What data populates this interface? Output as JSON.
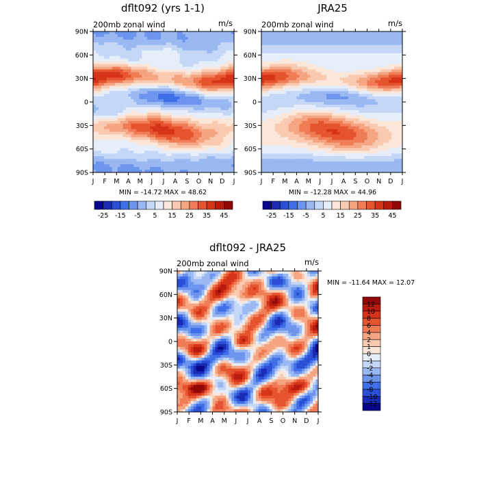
{
  "figure": {
    "panels": [
      {
        "title": "dflt092 (yrs 1-1)",
        "field": "200mb zonal wind",
        "unit": "m/s",
        "min_label": "MIN",
        "min_value": "-14.72",
        "max_label": "MAX",
        "max_value": "48.62"
      },
      {
        "title": "JRA25",
        "field": "200mb zonal wind",
        "unit": "m/s",
        "min_label": "MIN",
        "min_value": "-12.28",
        "max_label": "MAX",
        "max_value": "44.96"
      },
      {
        "title": "dflt092 - JRA25",
        "field": "200mb zonal wind",
        "unit": "m/s",
        "min_label": "MIN",
        "min_value": "-11.64",
        "max_label": "MAX",
        "max_value": "12.07"
      }
    ]
  },
  "chart_data": [
    {
      "type": "heatmap",
      "title": "dflt092 (yrs 1-1)",
      "subtitle": "200mb zonal wind",
      "unit": "m/s",
      "x": [
        "J",
        "F",
        "M",
        "A",
        "M",
        "J",
        "J",
        "A",
        "S",
        "O",
        "N",
        "D",
        "J"
      ],
      "y": [
        "90N",
        "60N",
        "30N",
        "0",
        "30S",
        "60S",
        "90S"
      ],
      "value_min": -14.72,
      "value_max": 48.62,
      "colorbar": {
        "orientation": "horizontal",
        "labels": [
          "-25",
          "-15",
          "-5",
          "5",
          "15",
          "25",
          "35",
          "45"
        ],
        "levels": [
          -30,
          -25,
          -20,
          -15,
          -10,
          -5,
          0,
          5,
          10,
          15,
          20,
          25,
          30,
          35,
          40,
          45,
          50
        ],
        "colors": [
          "#08088c",
          "#1a2ab4",
          "#2a4fd6",
          "#3f6fe6",
          "#6d95ee",
          "#9ab8f2",
          "#c5d7f6",
          "#e6eefb",
          "#fbe6da",
          "#f9c9b0",
          "#f5a582",
          "#f07c56",
          "#e6532f",
          "#d63418",
          "#b81c0f",
          "#900808"
        ]
      }
    },
    {
      "type": "heatmap",
      "title": "JRA25",
      "subtitle": "200mb zonal wind",
      "unit": "m/s",
      "x": [
        "J",
        "F",
        "M",
        "A",
        "M",
        "J",
        "J",
        "A",
        "S",
        "O",
        "N",
        "D",
        "J"
      ],
      "y": [
        "90N",
        "60N",
        "30N",
        "0",
        "30S",
        "60S",
        "90S"
      ],
      "value_min": -12.28,
      "value_max": 44.96,
      "colorbar": {
        "orientation": "horizontal",
        "labels": [
          "-25",
          "-15",
          "-5",
          "5",
          "15",
          "25",
          "35",
          "45"
        ],
        "levels": [
          -30,
          -25,
          -20,
          -15,
          -10,
          -5,
          0,
          5,
          10,
          15,
          20,
          25,
          30,
          35,
          40,
          45,
          50
        ],
        "colors": [
          "#08088c",
          "#1a2ab4",
          "#2a4fd6",
          "#3f6fe6",
          "#6d95ee",
          "#9ab8f2",
          "#c5d7f6",
          "#e6eefb",
          "#fbe6da",
          "#f9c9b0",
          "#f5a582",
          "#f07c56",
          "#e6532f",
          "#d63418",
          "#b81c0f",
          "#900808"
        ]
      }
    },
    {
      "type": "heatmap",
      "title": "dflt092 - JRA25",
      "subtitle": "200mb zonal wind",
      "unit": "m/s",
      "x": [
        "J",
        "F",
        "M",
        "A",
        "M",
        "J",
        "J",
        "A",
        "S",
        "O",
        "N",
        "D",
        "J"
      ],
      "y": [
        "90N",
        "60N",
        "30N",
        "0",
        "30S",
        "60S",
        "90S"
      ],
      "value_min": -11.64,
      "value_max": 12.07,
      "colorbar": {
        "orientation": "vertical",
        "labels": [
          "12",
          "10",
          "8",
          "6",
          "4",
          "2",
          "1",
          "0",
          "-1",
          "-2",
          "-4",
          "-6",
          "-8",
          "-10",
          "-12"
        ],
        "levels": [
          -14,
          -12,
          -10,
          -8,
          -6,
          -4,
          -2,
          -1,
          0,
          1,
          2,
          4,
          6,
          8,
          10,
          12,
          14
        ],
        "colors": [
          "#08088c",
          "#1a2ab4",
          "#2a4fd6",
          "#3f6fe6",
          "#6d95ee",
          "#9ab8f2",
          "#c5d7f6",
          "#e6eefb",
          "#fbe6da",
          "#f9c9b0",
          "#f5a582",
          "#f07c56",
          "#e6532f",
          "#d63418",
          "#b81c0f",
          "#900808"
        ]
      }
    }
  ]
}
